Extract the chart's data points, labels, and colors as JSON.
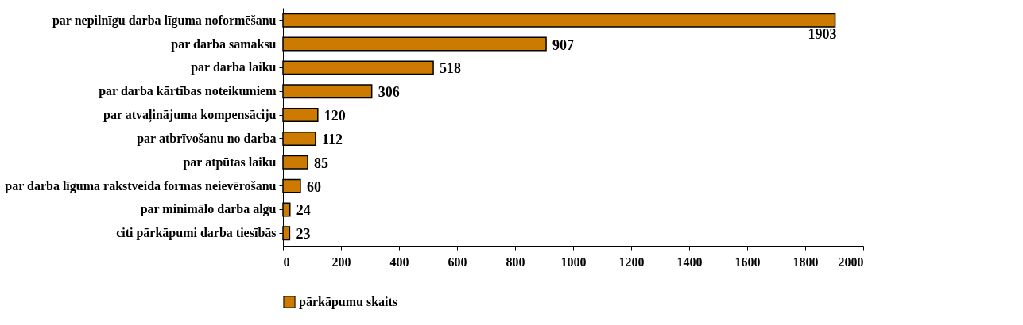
{
  "chart_data": {
    "type": "bar",
    "orientation": "horizontal",
    "categories": [
      "par nepilnīgu darba līguma noformēšanu",
      "par darba samaksu",
      "par darba laiku",
      "par darba kārtības noteikumiem",
      "par atvaļinājuma kompensāciju",
      "par atbrīvošanu no darba",
      "par atpūtas laiku",
      "par darba līguma rakstveida formas neievērošanu",
      "par minimālo darba algu",
      "citi pārkāpumi darba tiesībās"
    ],
    "series": [
      {
        "name": "pārkāpumu skaits",
        "color": "#cc7a00",
        "values": [
          1903,
          907,
          518,
          306,
          120,
          112,
          85,
          60,
          24,
          23
        ]
      }
    ],
    "xlim": [
      0,
      2000
    ],
    "xticks": [
      0,
      200,
      400,
      600,
      800,
      1000,
      1200,
      1400,
      1600,
      1800,
      2000
    ],
    "data_labels": true,
    "grid": false,
    "legend": "bottom"
  }
}
